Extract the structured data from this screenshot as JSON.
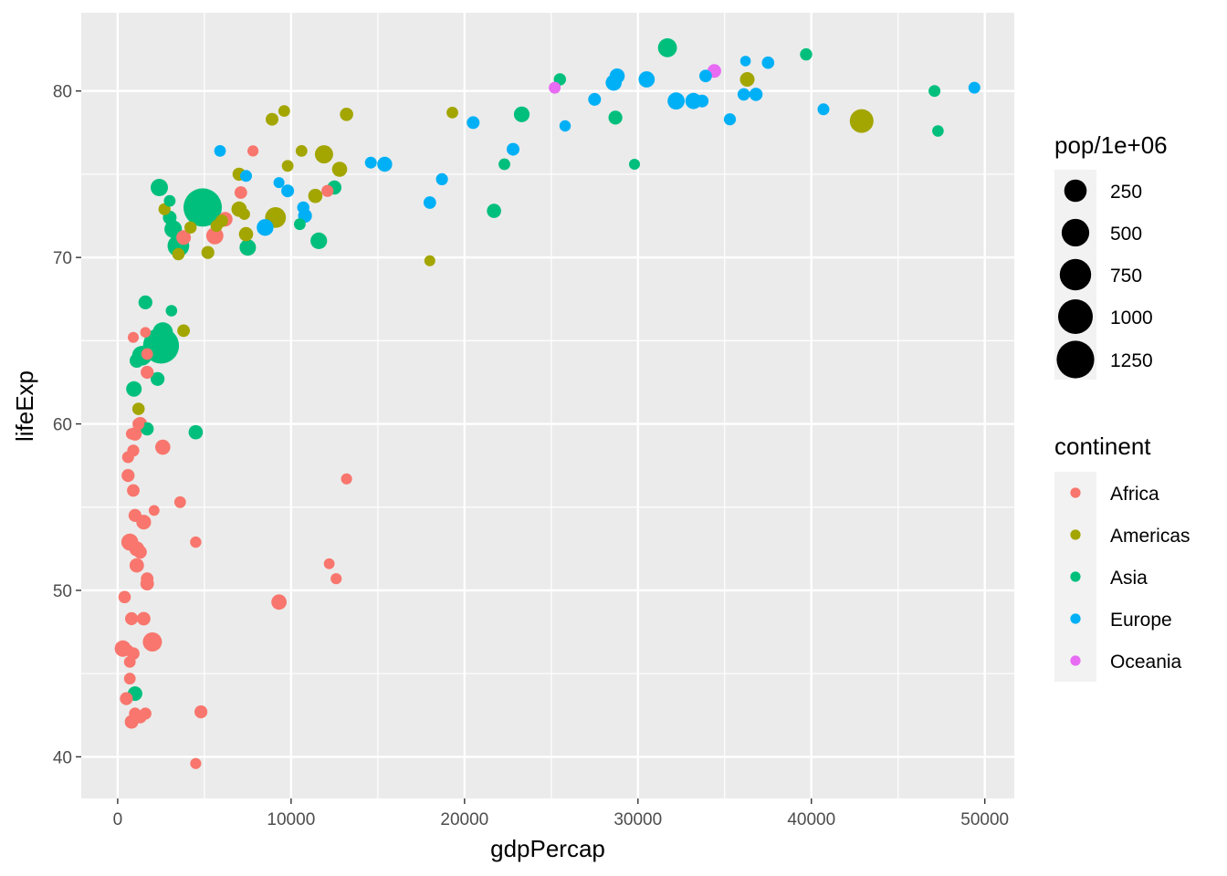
{
  "chart_data": {
    "type": "scatter",
    "xlabel": "gdpPercap",
    "ylabel": "lifeExp",
    "xlim": [
      -2100,
      51700
    ],
    "ylim": [
      37.5,
      84.7
    ],
    "x_ticks": [
      0,
      10000,
      20000,
      30000,
      40000,
      50000
    ],
    "x_tick_labels": [
      "0",
      "10000",
      "20000",
      "30000",
      "40000",
      "50000"
    ],
    "y_ticks": [
      40,
      50,
      60,
      70,
      80
    ],
    "y_tick_labels": [
      "40",
      "50",
      "60",
      "70",
      "80"
    ],
    "grid": true,
    "legend_placement": "right",
    "size_legend": {
      "title": "pop/1e+06",
      "values": [
        250,
        500,
        750,
        1000,
        1250
      ],
      "labels": [
        "250",
        "500",
        "750",
        "1000",
        "1250"
      ]
    },
    "color_legend": {
      "title": "continent",
      "entries": [
        {
          "label": "Africa",
          "color": "#F8766D"
        },
        {
          "label": "Americas",
          "color": "#A3A500"
        },
        {
          "label": "Asia",
          "color": "#00BF7D"
        },
        {
          "label": "Europe",
          "color": "#00B0F6"
        },
        {
          "label": "Oceania",
          "color": "#E76BF3"
        }
      ]
    },
    "series": [
      {
        "continent": "Africa",
        "points": [
          [
            6200,
            72.3,
            33
          ],
          [
            4800,
            42.7,
            12
          ],
          [
            1500,
            54.1,
            8
          ],
          [
            1200,
            60.0,
            2
          ],
          [
            1300,
            52.3,
            14
          ],
          [
            400,
            49.6,
            8
          ],
          [
            1700,
            50.4,
            18
          ],
          [
            700,
            44.7,
            4
          ],
          [
            1700,
            50.7,
            10
          ],
          [
            900,
            65.2,
            1
          ],
          [
            300,
            46.5,
            65
          ],
          [
            3600,
            55.3,
            4
          ],
          [
            1500,
            48.3,
            18
          ],
          [
            2100,
            54.8,
            0.5
          ],
          [
            12200,
            51.6,
            0.5
          ],
          [
            600,
            58.0,
            5
          ],
          [
            700,
            52.9,
            76
          ],
          [
            13200,
            56.7,
            1.5
          ],
          [
            800,
            59.4,
            1.7
          ],
          [
            1300,
            60.0,
            23
          ],
          [
            900,
            56.0,
            9
          ],
          [
            600,
            46.4,
            1.5
          ],
          [
            1500,
            54.1,
            35
          ],
          [
            1600,
            42.6,
            2
          ],
          [
            700,
            45.7,
            3.2
          ],
          [
            12100,
            74.0,
            6
          ],
          [
            1000,
            59.4,
            19
          ],
          [
            800,
            48.3,
            13
          ],
          [
            1000,
            54.5,
            12
          ],
          [
            1700,
            64.2,
            3.3
          ],
          [
            7800,
            76.4,
            1.3
          ],
          [
            3800,
            71.2,
            33
          ],
          [
            800,
            42.1,
            20
          ],
          [
            4500,
            52.9,
            2
          ],
          [
            600,
            56.9,
            12.9
          ],
          [
            2000,
            46.9,
            135
          ],
          [
            900,
            46.2,
            9
          ],
          [
            1600,
            65.5,
            0.2
          ],
          [
            1700,
            63.1,
            12
          ],
          [
            1600,
            42.6,
            6
          ],
          [
            4500,
            39.6,
            0.5
          ],
          [
            9300,
            49.3,
            44
          ],
          [
            2600,
            58.6,
            42
          ],
          [
            4500,
            39.6,
            1.1
          ],
          [
            1100,
            52.5,
            38
          ],
          [
            900,
            58.4,
            5.7
          ],
          [
            7100,
            73.9,
            10
          ],
          [
            1100,
            51.5,
            29
          ],
          [
            1300,
            42.4,
            12
          ],
          [
            500,
            43.5,
            12
          ],
          [
            12600,
            50.7,
            1.3
          ],
          [
            5600,
            71.3,
            80
          ],
          [
            1000,
            42.6,
            6
          ],
          [
            1200,
            60.0,
            6
          ]
        ]
      },
      {
        "continent": "Americas",
        "points": [
          [
            12800,
            75.3,
            40
          ],
          [
            3800,
            65.6,
            9
          ],
          [
            9100,
            72.4,
            190
          ],
          [
            36300,
            80.7,
            33
          ],
          [
            13200,
            78.6,
            16
          ],
          [
            7000,
            72.9,
            44
          ],
          [
            9600,
            78.8,
            4
          ],
          [
            8900,
            78.3,
            11
          ],
          [
            6000,
            72.2,
            9
          ],
          [
            7000,
            75.0,
            14
          ],
          [
            5700,
            71.9,
            6
          ],
          [
            5200,
            70.3,
            13
          ],
          [
            1200,
            60.9,
            8.5
          ],
          [
            3500,
            70.2,
            7.5
          ],
          [
            7300,
            72.6,
            2.8
          ],
          [
            11900,
            76.2,
            108
          ],
          [
            2700,
            72.9,
            5.7
          ],
          [
            9800,
            75.5,
            3.2
          ],
          [
            4200,
            71.8,
            6.7
          ],
          [
            7400,
            71.4,
            28
          ],
          [
            19300,
            78.7,
            4
          ],
          [
            18000,
            69.8,
            1
          ],
          [
            42900,
            78.2,
            301
          ],
          [
            10600,
            76.4,
            3.4
          ],
          [
            11400,
            73.7,
            26
          ]
        ]
      },
      {
        "continent": "Asia",
        "points": [
          [
            1000,
            43.8,
            32
          ],
          [
            29800,
            75.6,
            0.7
          ],
          [
            1400,
            64.1,
            150
          ],
          [
            1700,
            59.7,
            14
          ],
          [
            4900,
            73.0,
            1319
          ],
          [
            39700,
            82.2,
            7
          ],
          [
            2500,
            64.7,
            1110
          ],
          [
            3500,
            70.7,
            224
          ],
          [
            11600,
            71.0,
            69
          ],
          [
            4500,
            59.5,
            27
          ],
          [
            25500,
            80.7,
            6.4
          ],
          [
            31700,
            82.6,
            127
          ],
          [
            4500,
            72.5,
            6
          ],
          [
            1600,
            67.3,
            23
          ],
          [
            23300,
            78.6,
            49
          ],
          [
            47300,
            77.6,
            2.5
          ],
          [
            10500,
            72.0,
            4
          ],
          [
            12500,
            74.2,
            24
          ],
          [
            3100,
            66.8,
            2.9
          ],
          [
            940,
            62.1,
            47
          ],
          [
            1100,
            63.8,
            28
          ],
          [
            22300,
            75.6,
            3.2
          ],
          [
            2600,
            65.5,
            169
          ],
          [
            3200,
            71.7,
            91
          ],
          [
            21700,
            72.8,
            27
          ],
          [
            47100,
            80.0,
            4.5
          ],
          [
            3000,
            72.4,
            20
          ],
          [
            28700,
            78.4,
            23
          ],
          [
            7500,
            70.6,
            65
          ],
          [
            2400,
            74.2,
            85
          ],
          [
            3000,
            73.4,
            4
          ],
          [
            2300,
            62.7,
            22
          ]
        ]
      },
      {
        "continent": "Europe",
        "points": [
          [
            5900,
            76.4,
            3.6
          ],
          [
            36100,
            79.8,
            8.2
          ],
          [
            33700,
            79.4,
            10.4
          ],
          [
            7400,
            74.9,
            4.6
          ],
          [
            10700,
            73.0,
            7.3
          ],
          [
            14600,
            75.7,
            4.5
          ],
          [
            22800,
            76.5,
            10.2
          ],
          [
            35300,
            78.3,
            5.5
          ],
          [
            33200,
            79.3,
            5.2
          ],
          [
            30500,
            80.7,
            61
          ],
          [
            32200,
            79.4,
            82
          ],
          [
            27500,
            79.5,
            10.7
          ],
          [
            18000,
            73.3,
            10
          ],
          [
            36200,
            81.8,
            0.3
          ],
          [
            40700,
            78.9,
            4.1
          ],
          [
            28600,
            80.5,
            58
          ],
          [
            9300,
            74.5,
            0.7
          ],
          [
            36800,
            79.8,
            16.6
          ],
          [
            49400,
            80.2,
            4.6
          ],
          [
            15400,
            75.6,
            38.5
          ],
          [
            20500,
            78.1,
            10.6
          ],
          [
            10800,
            72.5,
            22.3
          ],
          [
            9800,
            74.0,
            10.2
          ],
          [
            18700,
            74.7,
            5.4
          ],
          [
            25800,
            77.9,
            2
          ],
          [
            28800,
            80.9,
            40.4
          ],
          [
            33900,
            80.9,
            9
          ],
          [
            37500,
            81.7,
            7.6
          ],
          [
            8500,
            71.8,
            71
          ],
          [
            33200,
            79.4,
            60.8
          ]
        ]
      },
      {
        "continent": "Oceania",
        "points": [
          [
            34400,
            81.2,
            20.4
          ],
          [
            25200,
            80.2,
            4.1
          ]
        ]
      }
    ]
  }
}
